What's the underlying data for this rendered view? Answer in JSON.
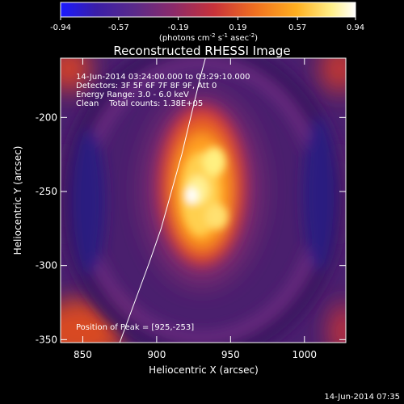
{
  "chart_data": {
    "type": "heatmap",
    "title": "Reconstructed RHESSI Image",
    "colorbar": {
      "ticks": [
        "-0.94",
        "-0.57",
        "-0.19",
        "0.19",
        "0.57",
        "0.94"
      ],
      "range": [
        -0.94,
        0.94
      ],
      "units_prefix": "(photons cm",
      "units_exp1": "-2",
      "units_mid": " s",
      "units_exp2": "-1",
      "units_mid2": " asec",
      "units_exp3": "-2",
      "units_suffix": ")",
      "colormap": [
        "#1a1aff",
        "#3a1ea8",
        "#5a2a8a",
        "#8a2a6a",
        "#c8323a",
        "#f07020",
        "#ffb020",
        "#fff08a",
        "#ffffff"
      ]
    },
    "xlabel": "Heliocentric X (arcsec)",
    "ylabel": "Heliocentric Y (arcsec)",
    "xlim": [
      835,
      1028
    ],
    "ylim": [
      -352,
      -160
    ],
    "xticks": [
      850,
      900,
      950,
      1000
    ],
    "yticks": [
      -200,
      -250,
      -300,
      -350
    ],
    "annotations": [
      "14-Jun-2014 03:24:00.000 to 03:29:10.000",
      "Detectors: 3F 5F 6F 7F 8F 9F, Att 0",
      "Energy Range: 3.0 - 6.0 keV",
      "Clean    Total counts: 1.38E+05"
    ],
    "peak_text": "Position of Peak = [925,-253]",
    "peak": [
      925,
      -253
    ],
    "limb": [
      [
        875,
        -352
      ],
      [
        885,
        -325
      ],
      [
        895,
        -298
      ],
      [
        903,
        -275
      ],
      [
        910,
        -250
      ],
      [
        917,
        -225
      ],
      [
        923,
        -200
      ],
      [
        929,
        -175
      ],
      [
        933,
        -160
      ]
    ]
  },
  "footer": {
    "timestamp": "14-Jun-2014 07:35"
  }
}
